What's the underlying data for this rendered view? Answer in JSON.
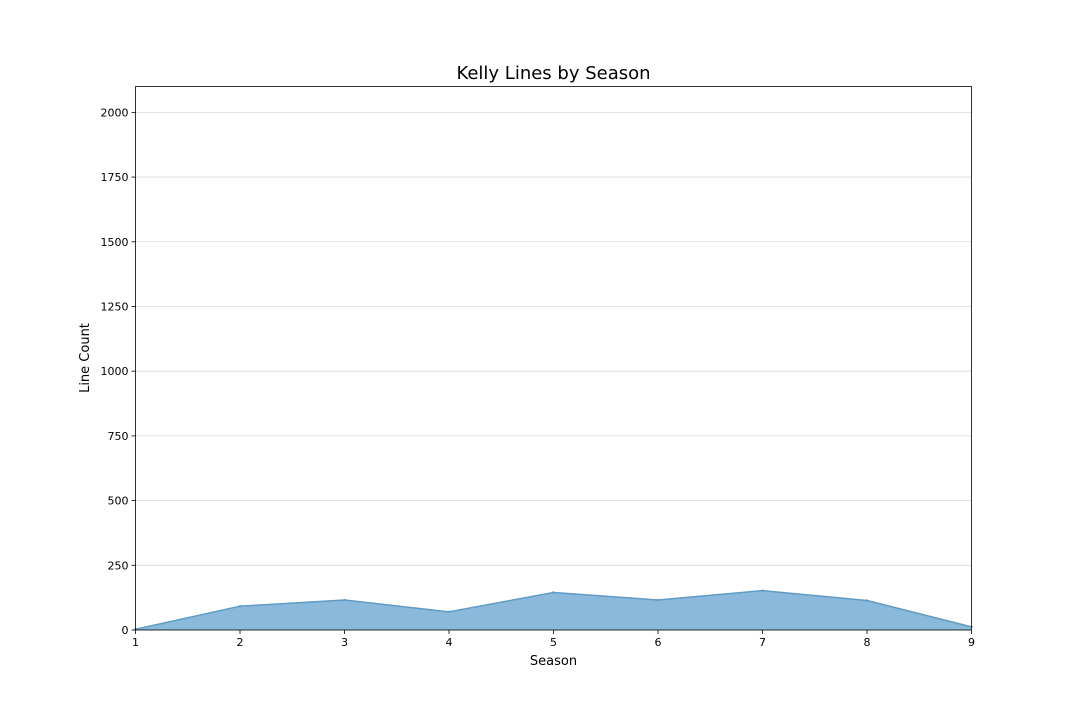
{
  "chart_data": {
    "type": "area",
    "title": "Kelly Lines by Season",
    "xlabel": "Season",
    "ylabel": "Line Count",
    "x": [
      1,
      2,
      3,
      4,
      5,
      6,
      7,
      8,
      9
    ],
    "series": [
      {
        "values": [
          3,
          92,
          116,
          70,
          145,
          116,
          152,
          114,
          12
        ]
      }
    ],
    "xlim": [
      1,
      9
    ],
    "ylim": [
      0,
      2100
    ],
    "xticks": [
      "1",
      "2",
      "3",
      "4",
      "5",
      "6",
      "7",
      "8",
      "9"
    ],
    "yticks": [
      "0",
      "250",
      "500",
      "750",
      "1000",
      "1250",
      "1500",
      "1750",
      "2000"
    ],
    "grid": "horizontal",
    "colors": {
      "fill": "#8ab9db",
      "line": "#5f9bc4"
    }
  }
}
